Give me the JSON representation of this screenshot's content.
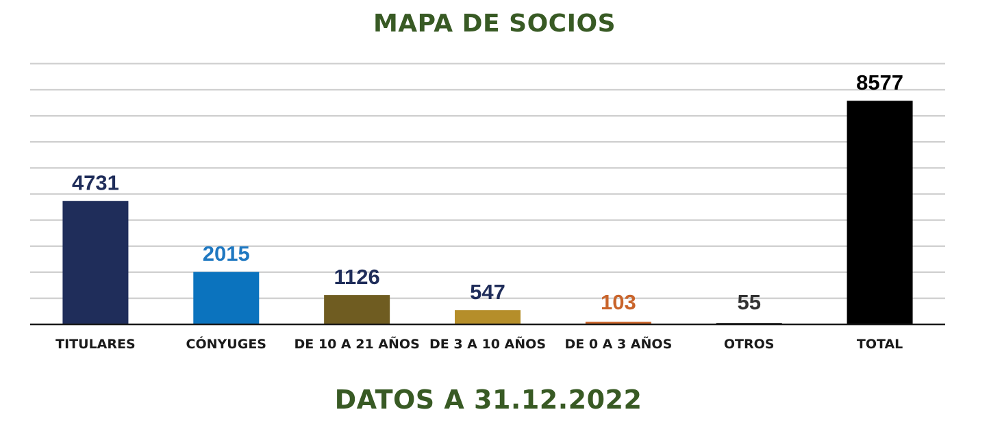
{
  "chart_data": {
    "type": "bar",
    "title": "MAPA DE SOCIOS",
    "subtitle": "DATOS A 31.12.2022",
    "categories": [
      "TITULARES",
      "CÓNYUGES",
      "DE 10 A 21 AÑOS",
      "DE 3 A 10 AÑOS",
      "DE 0 A 3 AÑOS",
      "OTROS",
      "TOTAL"
    ],
    "values": [
      4731,
      2015,
      1126,
      547,
      103,
      55,
      8577
    ],
    "bar_colors": [
      "#1f2d5a",
      "#0b73be",
      "#6f5c21",
      "#b58e2a",
      "#c9642b",
      "#3a3a3a",
      "#000000"
    ],
    "label_colors": [
      "#1f2d5a",
      "#1f78c1",
      "#1f2d5a",
      "#1f2d5a",
      "#c9642b",
      "#333333",
      "#000000"
    ],
    "ylim": [
      0,
      10000
    ],
    "grid": true,
    "legend": "none",
    "xlabel": "",
    "ylabel": ""
  }
}
